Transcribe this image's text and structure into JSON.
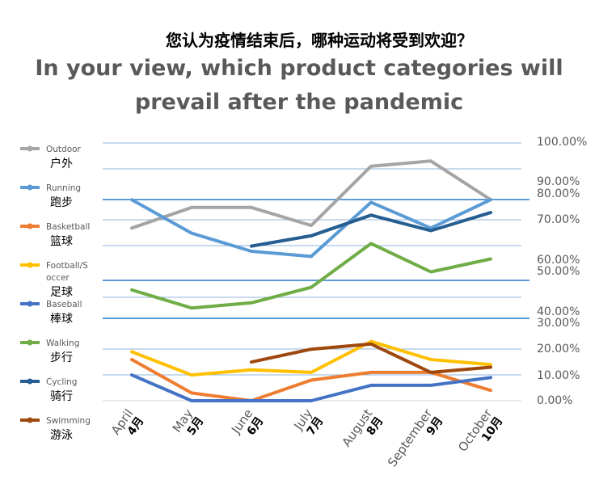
{
  "chart_data": {
    "type": "line",
    "title": "您认为疫情结束后，哪种运动将受到欢迎？",
    "subtitle": "In your view, which product categories will prevail after the pandemic",
    "categories": [
      {
        "en": "April",
        "cn": "4月"
      },
      {
        "en": "May",
        "cn": "5月"
      },
      {
        "en": "June",
        "cn": "6月"
      },
      {
        "en": "July",
        "cn": "7月"
      },
      {
        "en": "August",
        "cn": "8月"
      },
      {
        "en": "September",
        "cn": "9月"
      },
      {
        "en": "October",
        "cn": "10月"
      }
    ],
    "series": [
      {
        "name": "Outdoor",
        "name_cn": "户外",
        "color": "#a5a5a5",
        "values": [
          67,
          75,
          75,
          68,
          91,
          93,
          78
        ]
      },
      {
        "name": "Running",
        "name_cn": "跑步",
        "color": "#5b9bd5",
        "values": [
          78,
          65,
          58,
          56,
          77,
          67,
          78
        ]
      },
      {
        "name": "Basketball",
        "name_cn": "篮球",
        "color": "#ed7d31",
        "values": [
          16,
          3,
          0,
          8,
          11,
          11,
          4
        ]
      },
      {
        "name": "Football/Soccer",
        "name_cn": "足球",
        "color": "#ffc000",
        "values": [
          19,
          10,
          12,
          11,
          23,
          16,
          14
        ]
      },
      {
        "name": "Baseball",
        "name_cn": "棒球",
        "color": "#4472c4",
        "values": [
          10,
          0,
          0,
          0,
          6,
          6,
          9
        ]
      },
      {
        "name": "Walking",
        "name_cn": "步行",
        "color": "#70ad47",
        "values": [
          43,
          36,
          38,
          44,
          61,
          50,
          55
        ]
      },
      {
        "name": "Cycling",
        "name_cn": "骑行",
        "color": "#255e91",
        "values": [
          null,
          null,
          60,
          64,
          72,
          66,
          73
        ]
      },
      {
        "name": "Swimming",
        "name_cn": "游泳",
        "color": "#9e480e",
        "values": [
          null,
          null,
          15,
          20,
          22,
          11,
          13
        ]
      }
    ],
    "legend_labels": [
      "Outdoor",
      "Running",
      "Basketball",
      "Football/S",
      "occer",
      "Baseball",
      "Walking",
      "Cycling",
      "Swimming"
    ],
    "right_axis_labels": [
      "100.00%",
      "90.00%",
      "80.00%",
      "70.00%",
      "60.00%",
      "50.00%",
      "40.00%",
      "30.00%",
      "20.00%",
      "10.00%",
      "0.00%"
    ],
    "ylim": [
      0,
      100
    ],
    "legend_position": "left",
    "grid": true
  }
}
